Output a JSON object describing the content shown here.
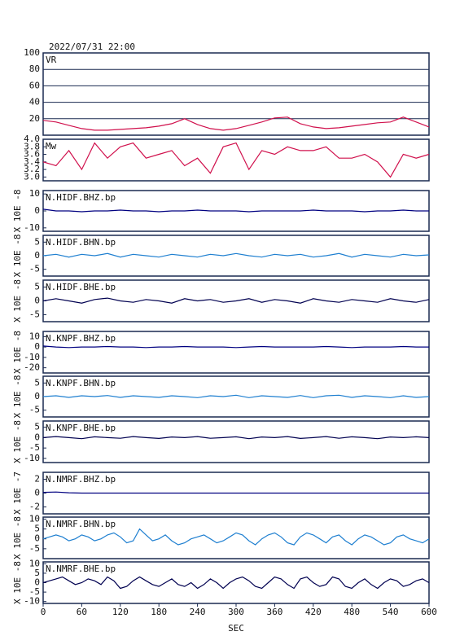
{
  "chart_data": [
    {
      "type": "line",
      "title": "2022/07/31 22:00",
      "label": "VR",
      "color": "#d0104c",
      "grid": true,
      "ylim": [
        0,
        100
      ],
      "yticks": [
        20,
        40,
        60,
        80,
        100
      ],
      "x": [
        0,
        20,
        40,
        60,
        80,
        100,
        120,
        140,
        160,
        180,
        200,
        220,
        240,
        260,
        280,
        300,
        320,
        340,
        360,
        380,
        400,
        420,
        440,
        460,
        480,
        500,
        520,
        540,
        560,
        580,
        600
      ],
      "values": [
        18,
        16,
        12,
        8,
        6,
        6,
        7,
        8,
        9,
        11,
        14,
        20,
        13,
        8,
        6,
        8,
        12,
        16,
        21,
        22,
        14,
        10,
        8,
        9,
        11,
        13,
        15,
        16,
        22,
        16,
        10
      ]
    },
    {
      "type": "line",
      "label": "Mw",
      "color": "#d0104c",
      "ylim": [
        2.9,
        4.0
      ],
      "yticks": [
        {
          "value": 3,
          "label": "3.0"
        },
        3.2,
        3.4,
        3.6,
        3.8,
        {
          "value": 4,
          "label": "4.0"
        }
      ],
      "x": [
        0,
        20,
        40,
        60,
        80,
        100,
        120,
        140,
        160,
        180,
        200,
        220,
        240,
        260,
        280,
        300,
        320,
        340,
        360,
        380,
        400,
        420,
        440,
        460,
        480,
        500,
        520,
        540,
        560,
        580,
        600
      ],
      "values": [
        3.4,
        3.3,
        3.7,
        3.2,
        3.9,
        3.5,
        3.8,
        3.9,
        3.5,
        3.6,
        3.7,
        3.3,
        3.5,
        3.1,
        3.8,
        3.9,
        3.2,
        3.7,
        3.6,
        3.8,
        3.7,
        3.7,
        3.8,
        3.5,
        3.5,
        3.6,
        3.4,
        3.0,
        3.6,
        3.5,
        3.6
      ]
    },
    {
      "type": "line",
      "label": "N.HIDF.BHZ.bp",
      "ylabel": "X 10E -8",
      "color": "#000080",
      "ylim": [
        -12,
        12
      ],
      "yticks": [
        -10,
        0,
        10
      ],
      "x": [
        0,
        20,
        40,
        60,
        80,
        100,
        120,
        140,
        160,
        180,
        200,
        220,
        240,
        260,
        280,
        300,
        320,
        340,
        360,
        380,
        400,
        420,
        440,
        460,
        480,
        500,
        520,
        540,
        560,
        580,
        600
      ],
      "values": [
        1,
        0,
        0,
        -0.5,
        0,
        0,
        0.5,
        0,
        0,
        -0.5,
        0,
        0,
        0.5,
        0,
        0,
        0,
        -0.5,
        0,
        0,
        0,
        0,
        0.5,
        0,
        0,
        0,
        -0.5,
        0,
        0,
        0.5,
        0,
        0
      ]
    },
    {
      "type": "line",
      "label": "N.HIDF.BHN.bp",
      "ylabel": "X 10E -8",
      "color": "#1e7fd0",
      "ylim": [
        -7.5,
        7.5
      ],
      "yticks": [
        -5,
        0,
        5
      ],
      "x": [
        0,
        20,
        40,
        60,
        80,
        100,
        120,
        140,
        160,
        180,
        200,
        220,
        240,
        260,
        280,
        300,
        320,
        340,
        360,
        380,
        400,
        420,
        440,
        460,
        480,
        500,
        520,
        540,
        560,
        580,
        600
      ],
      "values": [
        0,
        0.5,
        -0.5,
        0.5,
        0,
        0.8,
        -0.5,
        0.5,
        0,
        -0.5,
        0.5,
        0,
        -0.5,
        0.5,
        0,
        0.8,
        0,
        -0.5,
        0.5,
        0,
        0.5,
        -0.5,
        0,
        0.8,
        -0.5,
        0.5,
        0,
        -0.5,
        0.5,
        0,
        0.3
      ]
    },
    {
      "type": "line",
      "label": "N.HIDF.BHE.bp",
      "ylabel": "X 10E -8",
      "color": "#000050",
      "ylim": [
        -7.5,
        7.5
      ],
      "yticks": [
        -5,
        0,
        5
      ],
      "x": [
        0,
        20,
        40,
        60,
        80,
        100,
        120,
        140,
        160,
        180,
        200,
        220,
        240,
        260,
        280,
        300,
        320,
        340,
        360,
        380,
        400,
        420,
        440,
        460,
        480,
        500,
        520,
        540,
        560,
        580,
        600
      ],
      "values": [
        0,
        0.8,
        0,
        -0.8,
        0.5,
        1,
        0,
        -0.5,
        0.5,
        0,
        -0.8,
        0.8,
        0,
        0.5,
        -0.5,
        0,
        0.8,
        -0.5,
        0.5,
        0,
        -0.8,
        0.8,
        0,
        -0.5,
        0.5,
        0,
        -0.5,
        0.8,
        0,
        -0.5,
        0.5
      ]
    },
    {
      "type": "line",
      "label": "N.KNPF.BHZ.bp",
      "ylabel": "X 10E -8",
      "color": "#000080",
      "ylim": [
        -25,
        15
      ],
      "yticks": [
        -20,
        -10,
        0,
        10
      ],
      "x": [
        0,
        20,
        40,
        60,
        80,
        100,
        120,
        140,
        160,
        180,
        200,
        220,
        240,
        260,
        280,
        300,
        320,
        340,
        360,
        380,
        400,
        420,
        440,
        460,
        480,
        500,
        520,
        540,
        560,
        580,
        600
      ],
      "values": [
        1,
        0,
        -0.5,
        0,
        0,
        0.5,
        0,
        0,
        -0.5,
        0,
        0,
        0.5,
        0,
        0,
        0,
        -0.5,
        0,
        0.5,
        0,
        0,
        0,
        0,
        0.5,
        0,
        -0.5,
        0,
        0,
        0,
        0.5,
        0,
        0
      ]
    },
    {
      "type": "line",
      "label": "N.KNPF.BHN.bp",
      "ylabel": "X 10E -8",
      "color": "#1e7fd0",
      "ylim": [
        -7.5,
        7.5
      ],
      "yticks": [
        -5,
        0,
        5
      ],
      "x": [
        0,
        20,
        40,
        60,
        80,
        100,
        120,
        140,
        160,
        180,
        200,
        220,
        240,
        260,
        280,
        300,
        320,
        340,
        360,
        380,
        400,
        420,
        440,
        460,
        480,
        500,
        520,
        540,
        560,
        580,
        600
      ],
      "values": [
        0,
        0.3,
        -0.3,
        0.3,
        0,
        0.4,
        -0.3,
        0.3,
        0,
        -0.3,
        0.3,
        0,
        -0.4,
        0.3,
        0,
        0.5,
        -0.4,
        0.3,
        0,
        -0.3,
        0.4,
        -0.4,
        0.3,
        0.5,
        -0.3,
        0.3,
        0,
        -0.4,
        0.3,
        -0.3,
        0
      ]
    },
    {
      "type": "line",
      "label": "N.KNPF.BHE.bp",
      "ylabel": "X 10E -8",
      "color": "#000050",
      "ylim": [
        -12,
        8
      ],
      "yticks": [
        -10,
        -5,
        0,
        5
      ],
      "x": [
        0,
        20,
        40,
        60,
        80,
        100,
        120,
        140,
        160,
        180,
        200,
        220,
        240,
        260,
        280,
        300,
        320,
        340,
        360,
        380,
        400,
        420,
        440,
        460,
        480,
        500,
        520,
        540,
        560,
        580,
        600
      ],
      "values": [
        0,
        0.5,
        0,
        -0.5,
        0.4,
        0,
        -0.3,
        0.5,
        0,
        -0.4,
        0.3,
        0,
        0.5,
        -0.3,
        0,
        0.4,
        -0.5,
        0.3,
        0,
        0.5,
        -0.4,
        0,
        0.5,
        -0.3,
        0.4,
        0,
        -0.5,
        0.3,
        0,
        0.4,
        0
      ]
    },
    {
      "type": "line",
      "label": "N.NMRF.BHZ.bp",
      "ylabel": "X 10E -7",
      "color": "#000080",
      "ylim": [
        -3,
        3
      ],
      "yticks": [
        -2,
        0,
        2
      ],
      "x": [
        0,
        20,
        40,
        60,
        80,
        100,
        120,
        140,
        160,
        180,
        200,
        220,
        240,
        260,
        280,
        300,
        320,
        340,
        360,
        380,
        400,
        420,
        440,
        460,
        480,
        500,
        520,
        540,
        560,
        580,
        600
      ],
      "values": [
        0.1,
        0.15,
        0.05,
        0,
        0,
        0,
        0,
        0,
        0,
        0,
        0,
        0,
        0,
        0,
        0,
        0,
        0,
        0,
        0,
        0,
        0,
        0,
        0,
        0,
        0,
        0,
        0,
        0,
        0,
        0,
        0
      ]
    },
    {
      "type": "line",
      "label": "N.NMRF.BHN.bp",
      "ylabel": "X 10E -8",
      "color": "#1e7fd0",
      "ylim": [
        -10,
        11
      ],
      "yticks": [
        -5,
        0,
        5,
        10
      ],
      "x": [
        0,
        10,
        20,
        30,
        40,
        50,
        60,
        70,
        80,
        90,
        100,
        110,
        120,
        130,
        140,
        150,
        160,
        170,
        180,
        190,
        200,
        210,
        220,
        230,
        240,
        250,
        260,
        270,
        280,
        290,
        300,
        310,
        320,
        330,
        340,
        350,
        360,
        370,
        380,
        390,
        400,
        410,
        420,
        430,
        440,
        450,
        460,
        470,
        480,
        490,
        500,
        510,
        520,
        530,
        540,
        550,
        560,
        570,
        580,
        590,
        600
      ],
      "values": [
        0,
        1,
        2,
        1,
        -1,
        0,
        2,
        1,
        -1,
        0,
        2,
        3,
        1,
        -2,
        -1,
        5,
        2,
        -1,
        0,
        2,
        -1,
        -3,
        -2,
        0,
        1,
        2,
        0,
        -2,
        -1,
        1,
        3,
        2,
        -1,
        -3,
        0,
        2,
        3,
        1,
        -2,
        -3,
        1,
        3,
        2,
        0,
        -2,
        1,
        2,
        -1,
        -3,
        0,
        2,
        1,
        -1,
        -3,
        -2,
        1,
        2,
        0,
        -1,
        -2,
        0
      ]
    },
    {
      "type": "line",
      "label": "N.NMRF.BHE.bp",
      "ylabel": "X 10E -8",
      "color": "#000050",
      "ylim": [
        -11,
        11
      ],
      "yticks": [
        -10,
        -5,
        0,
        5,
        10
      ],
      "xlim": [
        0,
        600
      ],
      "xticks": [
        0,
        60,
        120,
        180,
        240,
        300,
        360,
        420,
        480,
        540,
        600
      ],
      "xlabel": "SEC",
      "x": [
        0,
        10,
        20,
        30,
        40,
        50,
        60,
        70,
        80,
        90,
        100,
        110,
        120,
        130,
        140,
        150,
        160,
        170,
        180,
        190,
        200,
        210,
        220,
        230,
        240,
        250,
        260,
        270,
        280,
        290,
        300,
        310,
        320,
        330,
        340,
        350,
        360,
        370,
        380,
        390,
        400,
        410,
        420,
        430,
        440,
        450,
        460,
        470,
        480,
        490,
        500,
        510,
        520,
        530,
        540,
        550,
        560,
        570,
        580,
        590,
        600
      ],
      "values": [
        0,
        1,
        2,
        3,
        1,
        -1,
        0,
        2,
        1,
        -1,
        3,
        1,
        -3,
        -2,
        1,
        3,
        1,
        -1,
        -2,
        0,
        2,
        -1,
        -2,
        0,
        -3,
        -1,
        2,
        0,
        -3,
        0,
        2,
        3,
        1,
        -2,
        -3,
        0,
        3,
        2,
        -1,
        -3,
        2,
        3,
        0,
        -2,
        -1,
        3,
        2,
        -2,
        -3,
        0,
        2,
        -1,
        -3,
        0,
        2,
        1,
        -2,
        -1,
        1,
        2,
        0
      ]
    }
  ]
}
